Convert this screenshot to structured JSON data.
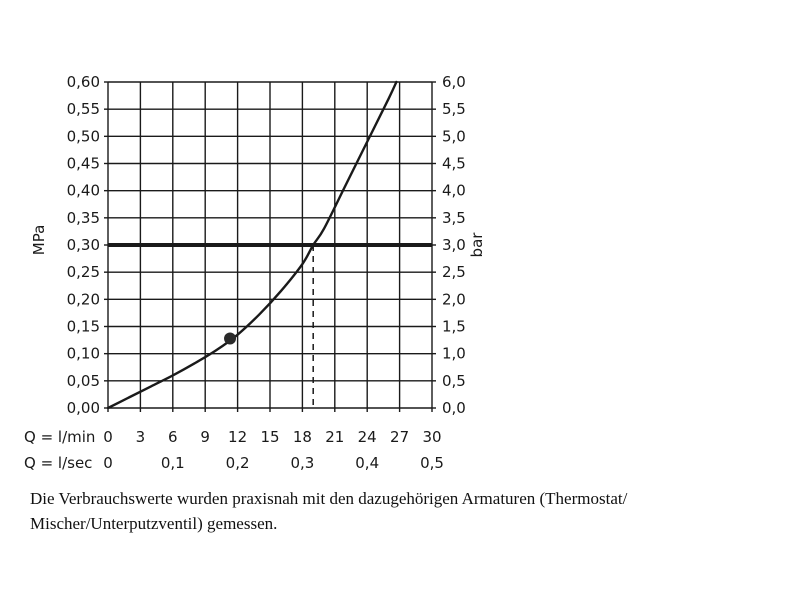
{
  "chart_data": {
    "type": "line",
    "y_left": {
      "label": "MPa",
      "range": [
        0,
        0.6
      ],
      "ticks": [
        "0,00",
        "0,05",
        "0,10",
        "0,15",
        "0,20",
        "0,25",
        "0,30",
        "0,35",
        "0,40",
        "0,45",
        "0,50",
        "0,55",
        "0,60"
      ]
    },
    "y_right": {
      "label": "bar",
      "range": [
        0,
        6
      ],
      "ticks": [
        "0,0",
        "0,5",
        "1,0",
        "1,5",
        "2,0",
        "2,5",
        "3,0",
        "3,5",
        "4,0",
        "4,5",
        "5,0",
        "5,5",
        "6,0"
      ]
    },
    "x_lmin": {
      "label": "Q = l/min",
      "range": [
        0,
        30
      ],
      "ticks": [
        "0",
        "3",
        "6",
        "9",
        "12",
        "15",
        "18",
        "21",
        "24",
        "27",
        "30"
      ]
    },
    "x_lsec": {
      "label": "Q = l/sec",
      "ticks": [
        {
          "value": 0,
          "text": "0"
        },
        {
          "value": 0.1,
          "text": "0,1"
        },
        {
          "value": 0.2,
          "text": "0,2"
        },
        {
          "value": 0.3,
          "text": "0,3"
        },
        {
          "value": 0.4,
          "text": "0,4"
        },
        {
          "value": 0.5,
          "text": "0,5"
        }
      ]
    },
    "grid": true,
    "series": [
      {
        "x": [
          0,
          2,
          4,
          6,
          8,
          10,
          12,
          14,
          16,
          18,
          19,
          20,
          22,
          24,
          26,
          26.7
        ],
        "y": [
          0,
          0.02,
          0.04,
          0.06,
          0.082,
          0.106,
          0.135,
          0.172,
          0.215,
          0.265,
          0.3,
          0.33,
          0.41,
          0.49,
          0.57,
          0.6
        ]
      }
    ],
    "marker": {
      "x": 11.3,
      "y": 0.128
    },
    "reference_line": {
      "y": 0.3
    },
    "drop_line": {
      "x": 19.0,
      "y": 0.3
    }
  },
  "caption": {
    "line1": "Die Verbrauchswerte wurden praxisnah mit den dazugehörigen Armaturen (Thermostat/",
    "line2": "Mischer/Unterputzventil) gemessen."
  },
  "colors": {
    "ink": "#1a1a1a",
    "grid": "#1a1a1a"
  }
}
